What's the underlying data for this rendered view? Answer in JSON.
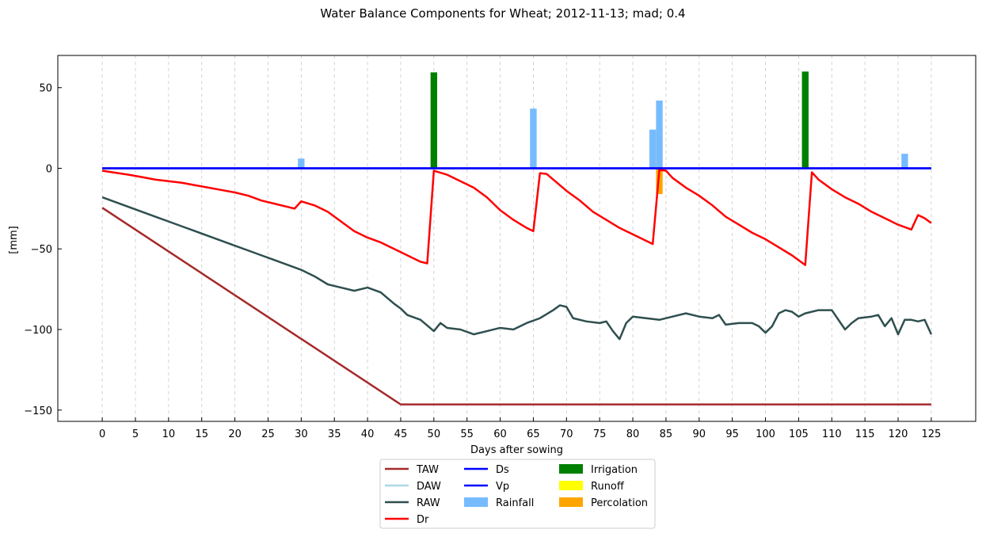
{
  "chart_data": {
    "type": "line",
    "title": "Water Balance Components for Wheat; 2012-11-13; mad; 0.4",
    "xlabel": "Days after sowing",
    "ylabel": "[mm]",
    "xlim": [
      -6.7,
      131.7
    ],
    "ylim": [
      -157,
      70
    ],
    "x_ticks": [
      0,
      5,
      10,
      15,
      20,
      25,
      30,
      35,
      40,
      45,
      50,
      55,
      60,
      65,
      70,
      75,
      80,
      85,
      90,
      95,
      100,
      105,
      110,
      115,
      120,
      125
    ],
    "x_tick_labels": [
      "0",
      "5",
      "10",
      "15",
      "20",
      "25",
      "30",
      "35",
      "40",
      "45",
      "50",
      "55",
      "60",
      "65",
      "70",
      "75",
      "80",
      "85",
      "90",
      "95",
      "100",
      "105",
      "110",
      "115",
      "120",
      "125"
    ],
    "y_ticks": [
      50,
      0,
      -50,
      -100,
      -150
    ],
    "y_tick_labels": [
      "50",
      "0",
      "−50",
      "−100",
      "−150"
    ],
    "x_grid": true,
    "y_grid": false,
    "legend": {
      "placement": "bottom-center",
      "columns": 3
    },
    "line_series": [
      {
        "name": "TAW",
        "color": "#a52a2a",
        "points": [
          [
            0,
            -24.5
          ],
          [
            45,
            -146.5
          ],
          [
            125,
            -146.5
          ]
        ]
      },
      {
        "name": "DAW",
        "color": "#add8e6",
        "points": []
      },
      {
        "name": "RAW",
        "color": "#2f4f4f",
        "points": [
          [
            0,
            -18
          ],
          [
            2,
            -21
          ],
          [
            4,
            -24
          ],
          [
            6,
            -27
          ],
          [
            8,
            -30
          ],
          [
            10,
            -33
          ],
          [
            12,
            -36
          ],
          [
            14,
            -39
          ],
          [
            16,
            -42
          ],
          [
            18,
            -45
          ],
          [
            20,
            -48
          ],
          [
            22,
            -51
          ],
          [
            24,
            -54
          ],
          [
            26,
            -57
          ],
          [
            28,
            -60
          ],
          [
            30,
            -63
          ],
          [
            32,
            -67
          ],
          [
            34,
            -72
          ],
          [
            35,
            -73
          ],
          [
            36,
            -74
          ],
          [
            38,
            -76
          ],
          [
            40,
            -74
          ],
          [
            42,
            -77
          ],
          [
            44,
            -84
          ],
          [
            45,
            -87
          ],
          [
            46,
            -91
          ],
          [
            48,
            -94
          ],
          [
            50,
            -101
          ],
          [
            51,
            -96
          ],
          [
            52,
            -99
          ],
          [
            54,
            -100
          ],
          [
            56,
            -103
          ],
          [
            58,
            -101
          ],
          [
            60,
            -99
          ],
          [
            62,
            -100
          ],
          [
            64,
            -96
          ],
          [
            66,
            -93
          ],
          [
            68,
            -88
          ],
          [
            69,
            -85
          ],
          [
            70,
            -86
          ],
          [
            71,
            -93
          ],
          [
            73,
            -95
          ],
          [
            75,
            -96
          ],
          [
            76,
            -95
          ],
          [
            77,
            -101
          ],
          [
            78,
            -106
          ],
          [
            79,
            -96
          ],
          [
            80,
            -92
          ],
          [
            82,
            -93
          ],
          [
            84,
            -94
          ],
          [
            86,
            -92
          ],
          [
            88,
            -90
          ],
          [
            90,
            -92
          ],
          [
            92,
            -93
          ],
          [
            93,
            -91
          ],
          [
            94,
            -97
          ],
          [
            96,
            -96
          ],
          [
            98,
            -96
          ],
          [
            99,
            -98
          ],
          [
            100,
            -102
          ],
          [
            101,
            -98
          ],
          [
            102,
            -90
          ],
          [
            103,
            -88
          ],
          [
            104,
            -89
          ],
          [
            105,
            -92
          ],
          [
            106,
            -90
          ],
          [
            108,
            -88
          ],
          [
            110,
            -88
          ],
          [
            112,
            -100
          ],
          [
            113,
            -96
          ],
          [
            114,
            -93
          ],
          [
            116,
            -92
          ],
          [
            117,
            -91
          ],
          [
            118,
            -98
          ],
          [
            119,
            -93
          ],
          [
            120,
            -103
          ],
          [
            121,
            -94
          ],
          [
            122,
            -94
          ],
          [
            123,
            -95
          ],
          [
            124,
            -94
          ],
          [
            125,
            -103
          ]
        ]
      },
      {
        "name": "Dr",
        "color": "#ff0000",
        "points": [
          [
            0,
            -1.5
          ],
          [
            2,
            -2.8
          ],
          [
            4,
            -4
          ],
          [
            6,
            -5.5
          ],
          [
            8,
            -7
          ],
          [
            10,
            -8
          ],
          [
            12,
            -9
          ],
          [
            14,
            -10.5
          ],
          [
            16,
            -12
          ],
          [
            18,
            -13.5
          ],
          [
            20,
            -15
          ],
          [
            22,
            -17
          ],
          [
            24,
            -20
          ],
          [
            26,
            -22
          ],
          [
            28,
            -24
          ],
          [
            29,
            -25
          ],
          [
            30,
            -20.5
          ],
          [
            32,
            -23
          ],
          [
            34,
            -27
          ],
          [
            36,
            -33
          ],
          [
            38,
            -39
          ],
          [
            40,
            -43
          ],
          [
            42,
            -46
          ],
          [
            44,
            -50
          ],
          [
            45,
            -52
          ],
          [
            46,
            -54
          ],
          [
            47,
            -56
          ],
          [
            48,
            -58
          ],
          [
            49,
            -59
          ],
          [
            50,
            -1.5
          ],
          [
            52,
            -4
          ],
          [
            54,
            -8
          ],
          [
            56,
            -12
          ],
          [
            58,
            -18
          ],
          [
            59,
            -22
          ],
          [
            60,
            -26
          ],
          [
            62,
            -32
          ],
          [
            64,
            -37
          ],
          [
            65,
            -39
          ],
          [
            66,
            -3
          ],
          [
            67,
            -3.5
          ],
          [
            68,
            -7
          ],
          [
            70,
            -14
          ],
          [
            72,
            -20
          ],
          [
            74,
            -27
          ],
          [
            76,
            -32
          ],
          [
            78,
            -37
          ],
          [
            80,
            -41
          ],
          [
            82,
            -45
          ],
          [
            83,
            -47
          ],
          [
            84,
            -1
          ],
          [
            85,
            -1.5
          ],
          [
            86,
            -6
          ],
          [
            88,
            -12
          ],
          [
            90,
            -17
          ],
          [
            92,
            -23
          ],
          [
            94,
            -30
          ],
          [
            96,
            -35
          ],
          [
            98,
            -40
          ],
          [
            100,
            -44
          ],
          [
            102,
            -49
          ],
          [
            104,
            -54
          ],
          [
            106,
            -60
          ],
          [
            107,
            -2.5
          ],
          [
            108,
            -7
          ],
          [
            110,
            -13
          ],
          [
            112,
            -18
          ],
          [
            114,
            -22
          ],
          [
            116,
            -27
          ],
          [
            118,
            -31
          ],
          [
            120,
            -35
          ],
          [
            122,
            -38
          ],
          [
            123,
            -29
          ],
          [
            124,
            -31
          ],
          [
            125,
            -34
          ]
        ]
      },
      {
        "name": "Ds",
        "color": "#0000ff",
        "points": [
          [
            0,
            0
          ],
          [
            125,
            0
          ]
        ]
      },
      {
        "name": "Vp",
        "color": "#0000ff",
        "points": [
          [
            0,
            0
          ],
          [
            125,
            0
          ]
        ]
      }
    ],
    "bar_series": [
      {
        "name": "Irrigation",
        "color": "#008000",
        "bars": [
          [
            50,
            59.5
          ],
          [
            106,
            60
          ]
        ]
      },
      {
        "name": "Rainfall",
        "color": "#77bbff",
        "bars": [
          [
            30,
            6
          ],
          [
            65,
            37
          ],
          [
            83,
            24
          ],
          [
            84,
            42
          ],
          [
            121,
            9
          ]
        ]
      },
      {
        "name": "Runoff",
        "color": "#ffff00",
        "bars": []
      },
      {
        "name": "Percolation",
        "color": "#ffa500",
        "bars": [
          [
            84,
            -16
          ]
        ]
      }
    ],
    "legend_order": [
      "TAW",
      "DAW",
      "RAW",
      "Dr",
      "Ds",
      "Vp",
      "Rainfall",
      "Irrigation",
      "Runoff",
      "Percolation"
    ]
  }
}
